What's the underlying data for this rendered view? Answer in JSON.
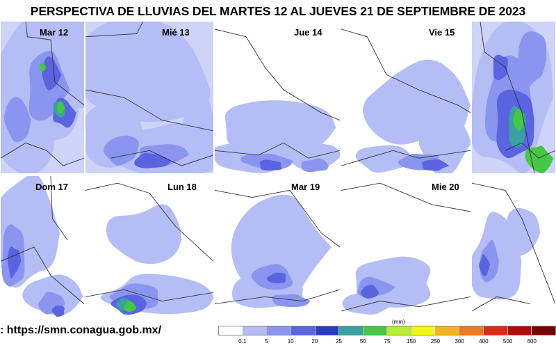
{
  "title": "PERSPECTIVA DE LLUVIAS DEL MARTES 12 AL JUEVES 21 DE SEPTIEMBRE DE 2023",
  "source": ": https://smn.conagua.gob.mx/",
  "panels": [
    {
      "label": "Mar 12",
      "coverage": "high"
    },
    {
      "label": "Mié 13",
      "coverage": "high"
    },
    {
      "label": "Jue 14",
      "coverage": "medium"
    },
    {
      "label": "Vie 15",
      "coverage": "medium"
    },
    {
      "label": "",
      "coverage": "very-high"
    },
    {
      "label": "Dom 17",
      "coverage": "medium"
    },
    {
      "label": "Lun 18",
      "coverage": "medium"
    },
    {
      "label": "Mar 19",
      "coverage": "medium"
    },
    {
      "label": "Mie 20",
      "coverage": "low"
    },
    {
      "label": "",
      "coverage": "low"
    }
  ],
  "legend": {
    "unit": "(mm)",
    "labels": [
      "0.1",
      "5",
      "10",
      "20",
      "25",
      "50",
      "75",
      "150",
      "250",
      "300",
      "400",
      "500",
      "600"
    ],
    "colors": [
      "#ffffff",
      "#b4bdf5",
      "#8a95f0",
      "#5a63e0",
      "#2c39c8",
      "#3aa0a0",
      "#46c646",
      "#b4ee2e",
      "#f5f51e",
      "#f5b41e",
      "#f0781e",
      "#e02814",
      "#b40a0a",
      "#780000"
    ]
  },
  "colors": {
    "rain_light": "#b4bdf5",
    "rain_mid": "#8a95f0",
    "rain_heavy": "#5a63e0",
    "rain_intense": "#2c39c8",
    "rain_teal": "#3aa0a0",
    "rain_green": "#46c646",
    "border": "#333333"
  }
}
